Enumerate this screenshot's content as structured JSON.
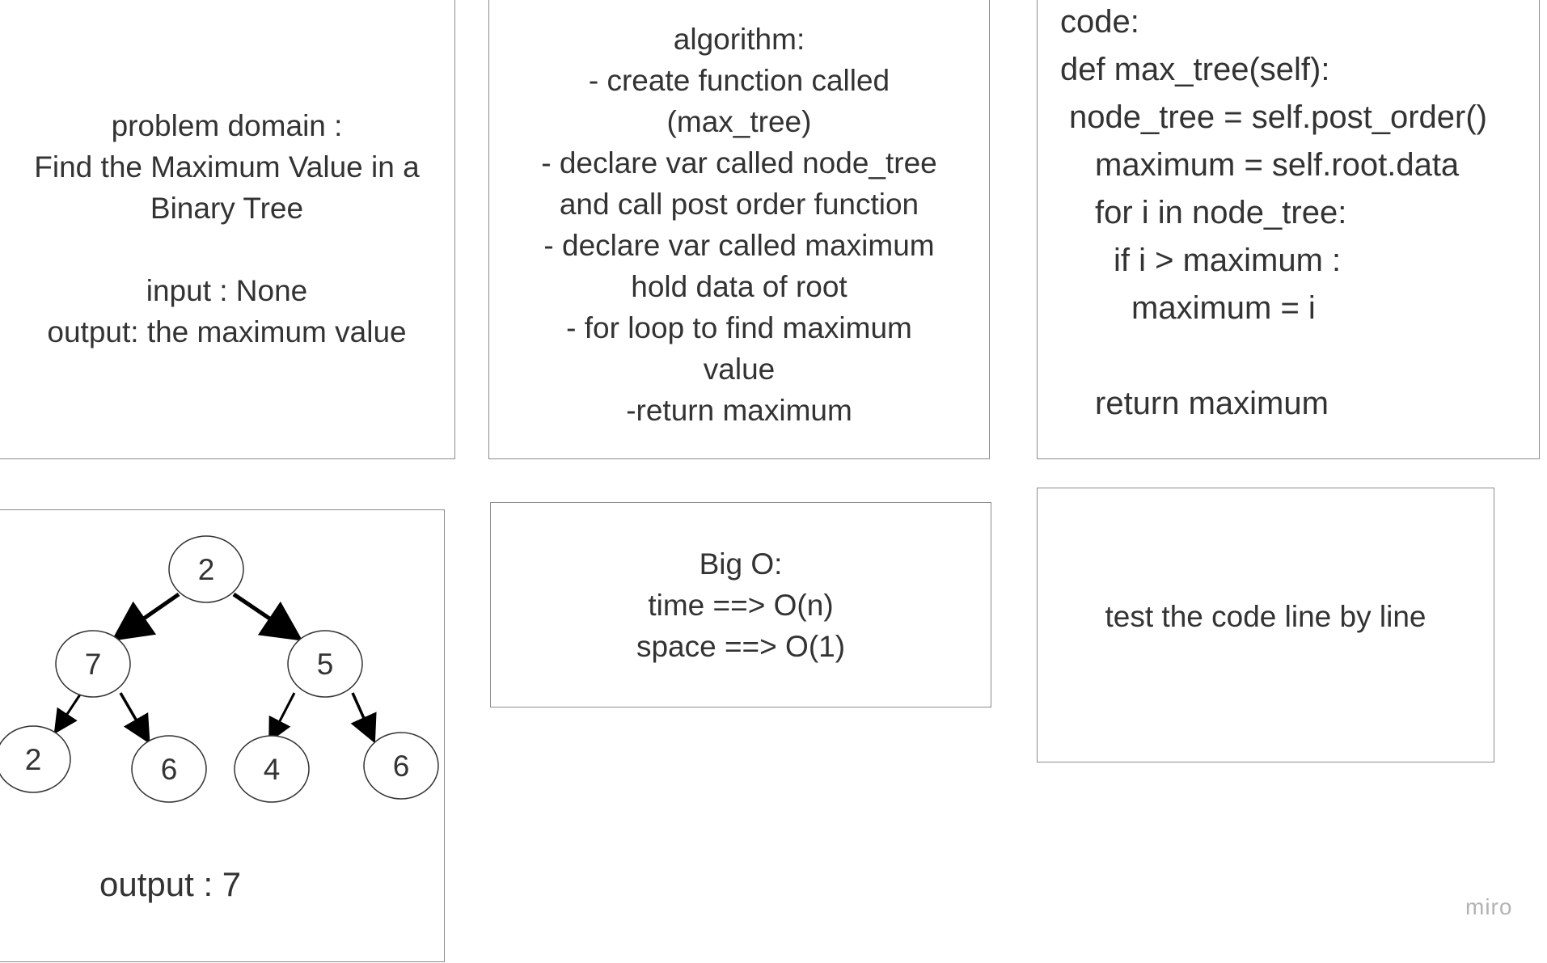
{
  "problem_domain": {
    "lines": [
      "problem domain :",
      "Find the Maximum Value in a",
      "Binary Tree"
    ],
    "input": "input : None",
    "output": "output: the maximum value"
  },
  "algorithm": {
    "lines": [
      "algorithm:",
      "- create function called",
      "(max_tree)",
      "- declare var called node_tree",
      "and call post order function",
      "- declare var called maximum",
      "hold data of root",
      "- for loop to find maximum",
      "value",
      "-return maximum"
    ]
  },
  "code": {
    "lines": [
      "code:",
      "def max_tree(self):",
      "node_tree = self.post_order()",
      "maximum = self.root.data",
      "for i in node_tree:",
      "if i > maximum :",
      "maximum = i",
      "return maximum"
    ]
  },
  "tree_example": {
    "nodes": [
      "2",
      "7",
      "5",
      "2",
      "6",
      "4",
      "6"
    ],
    "output": "output : 7"
  },
  "big_o": {
    "lines": [
      "Big O:",
      "time ==> O(n)",
      "space ==> O(1)"
    ]
  },
  "test": {
    "text": "test the code line by line"
  },
  "watermark": "miro",
  "colors": {
    "border": "#8c8c8c",
    "text": "#333333",
    "watermark": "#b3b3b3"
  }
}
